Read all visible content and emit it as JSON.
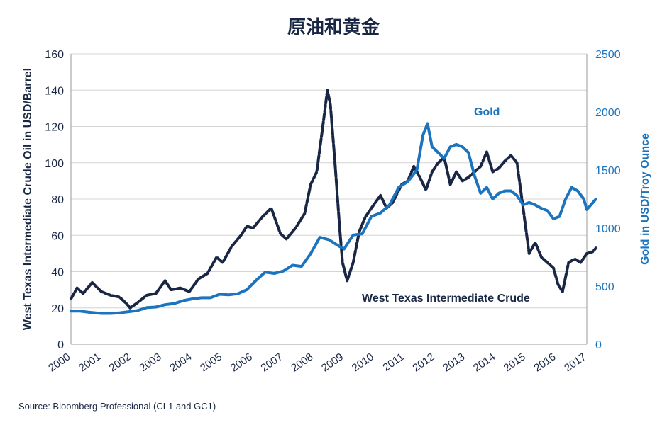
{
  "title": "原油和黄金",
  "source": "Source: Bloomberg Professional (CL1 and GC1)",
  "colors": {
    "oil": "#1a2744",
    "gold": "#1b74bd",
    "grid": "#d4d4d4"
  },
  "chart_data": {
    "type": "line",
    "title": "原油和黄金",
    "xlabel": "",
    "ylabel": "West Texas Intermediate Crude Oil in USD/Barrel",
    "ylabel_right": "Gold in USD/Troy Ounce",
    "xlim": [
      2000,
      2017
    ],
    "ylim": [
      0,
      160
    ],
    "ylim_right": [
      0,
      2500
    ],
    "x_ticks": [
      "2000",
      "2001",
      "2002",
      "2003",
      "2004",
      "2005",
      "2006",
      "2007",
      "2008",
      "2009",
      "2010",
      "2011",
      "2012",
      "2013",
      "2014",
      "2015",
      "2016",
      "2017"
    ],
    "y_ticks": [
      "0",
      "20",
      "40",
      "60",
      "80",
      "100",
      "120",
      "140",
      "160"
    ],
    "y_ticks_right": [
      "0",
      "500",
      "1000",
      "1500",
      "2000",
      "2500"
    ],
    "grid": "horizontal",
    "series": [
      {
        "name": "West Texas Intermediate Crude",
        "axis": "left",
        "x": [
          2000.0,
          2000.2,
          2000.4,
          2000.7,
          2001.0,
          2001.3,
          2001.6,
          2001.85,
          2001.95,
          2002.2,
          2002.5,
          2002.8,
          2003.1,
          2003.3,
          2003.6,
          2003.9,
          2004.2,
          2004.5,
          2004.8,
          2005.0,
          2005.3,
          2005.6,
          2005.8,
          2006.0,
          2006.3,
          2006.6,
          2006.9,
          2007.1,
          2007.4,
          2007.7,
          2007.9,
          2008.1,
          2008.3,
          2008.45,
          2008.55,
          2008.7,
          2008.85,
          2008.95,
          2009.1,
          2009.3,
          2009.5,
          2009.7,
          2009.9,
          2010.2,
          2010.4,
          2010.6,
          2010.9,
          2011.1,
          2011.3,
          2011.5,
          2011.7,
          2011.9,
          2012.1,
          2012.3,
          2012.5,
          2012.7,
          2012.9,
          2013.1,
          2013.3,
          2013.5,
          2013.7,
          2013.9,
          2014.1,
          2014.3,
          2014.5,
          2014.7,
          2014.9,
          2015.1,
          2015.3,
          2015.5,
          2015.7,
          2015.9,
          2016.05,
          2016.2,
          2016.4,
          2016.6,
          2016.8,
          2017.0,
          2017.2,
          2017.3
        ],
        "values": [
          25,
          31,
          28,
          34,
          29,
          27,
          26,
          22,
          20,
          23,
          27,
          28,
          35,
          30,
          31,
          29,
          36,
          39,
          48,
          45,
          54,
          60,
          65,
          64,
          70,
          75,
          61,
          58,
          64,
          72,
          88,
          95,
          120,
          140,
          132,
          100,
          65,
          45,
          35,
          45,
          62,
          70,
          75,
          82,
          75,
          78,
          88,
          90,
          98,
          92,
          85,
          95,
          100,
          103,
          88,
          95,
          90,
          92,
          95,
          98,
          106,
          95,
          97,
          101,
          104,
          100,
          75,
          50,
          56,
          48,
          45,
          42,
          33,
          29,
          45,
          47,
          45,
          50,
          51,
          53
        ]
      },
      {
        "name": "Gold",
        "axis": "right",
        "x": [
          2000.0,
          2000.3,
          2000.6,
          2001.0,
          2001.3,
          2001.6,
          2001.9,
          2002.2,
          2002.5,
          2002.8,
          2003.1,
          2003.4,
          2003.7,
          2004.0,
          2004.3,
          2004.6,
          2004.9,
          2005.2,
          2005.5,
          2005.8,
          2006.1,
          2006.4,
          2006.7,
          2007.0,
          2007.3,
          2007.6,
          2007.9,
          2008.2,
          2008.5,
          2008.8,
          2009.0,
          2009.3,
          2009.6,
          2009.9,
          2010.2,
          2010.5,
          2010.8,
          2011.1,
          2011.4,
          2011.6,
          2011.75,
          2011.9,
          2012.1,
          2012.3,
          2012.5,
          2012.7,
          2012.9,
          2013.1,
          2013.3,
          2013.5,
          2013.7,
          2013.9,
          2014.1,
          2014.3,
          2014.5,
          2014.7,
          2014.9,
          2015.1,
          2015.3,
          2015.5,
          2015.7,
          2015.9,
          2016.1,
          2016.3,
          2016.5,
          2016.7,
          2016.9,
          2017.0,
          2017.2,
          2017.3
        ],
        "values": [
          285,
          285,
          275,
          265,
          265,
          270,
          280,
          290,
          315,
          320,
          340,
          350,
          375,
          390,
          400,
          400,
          430,
          425,
          435,
          470,
          550,
          620,
          610,
          630,
          680,
          670,
          780,
          920,
          900,
          850,
          820,
          940,
          950,
          1100,
          1130,
          1200,
          1350,
          1400,
          1500,
          1800,
          1900,
          1700,
          1650,
          1600,
          1700,
          1720,
          1700,
          1650,
          1450,
          1300,
          1350,
          1250,
          1300,
          1320,
          1320,
          1280,
          1200,
          1220,
          1200,
          1170,
          1150,
          1080,
          1100,
          1250,
          1350,
          1320,
          1250,
          1160,
          1220,
          1250
        ]
      }
    ]
  }
}
